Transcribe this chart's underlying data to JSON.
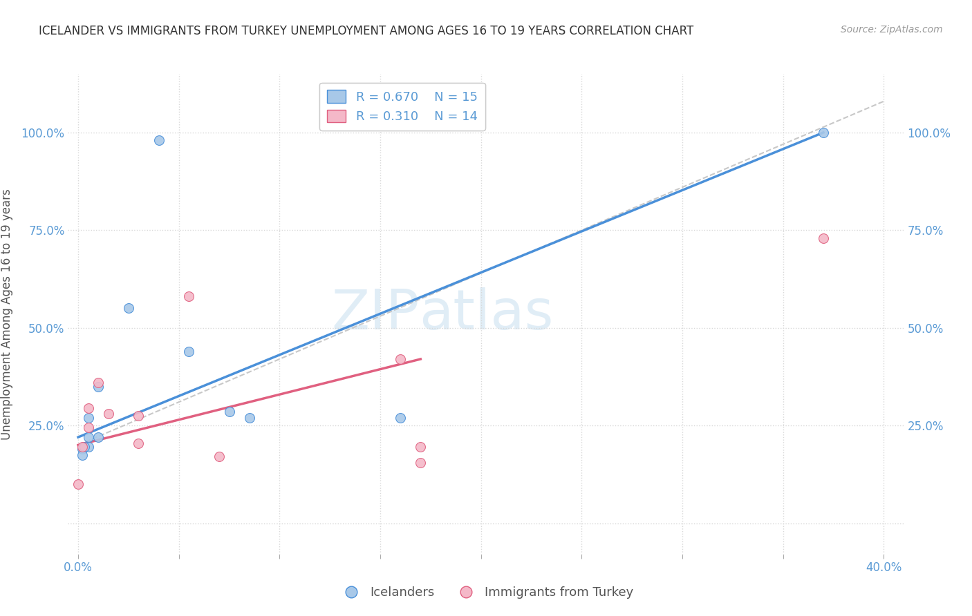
{
  "title": "ICELANDER VS IMMIGRANTS FROM TURKEY UNEMPLOYMENT AMONG AGES 16 TO 19 YEARS CORRELATION CHART",
  "source": "Source: ZipAtlas.com",
  "ylabel_label": "Unemployment Among Ages 16 to 19 years",
  "x_ticks": [
    0,
    5,
    10,
    15,
    20,
    25,
    30,
    35,
    40
  ],
  "x_tick_labels": [
    "0.0%",
    "",
    "",
    "",
    "",
    "",
    "",
    "",
    "40.0%"
  ],
  "y_ticks": [
    0,
    25,
    50,
    75,
    100
  ],
  "y_tick_labels": [
    "",
    "25.0%",
    "50.0%",
    "75.0%",
    "100.0%"
  ],
  "xlim": [
    -0.5,
    41
  ],
  "ylim": [
    -8,
    115
  ],
  "watermark_zip": "ZIP",
  "watermark_atlas": "atlas",
  "legend_line1": "R = 0.670    N = 15",
  "legend_line2": "R = 0.310    N = 14",
  "legend_label_blue": "Icelanders",
  "legend_label_pink": "Immigrants from Turkey",
  "blue_scatter_x": [
    4.0,
    0.2,
    2.5,
    1.0,
    1.0,
    0.5,
    0.5,
    0.5,
    0.3,
    0.2,
    5.5,
    7.5,
    8.5,
    37.0,
    16.0
  ],
  "blue_scatter_y": [
    98,
    19,
    55,
    35,
    22,
    27,
    22,
    19.5,
    19.5,
    17.5,
    44,
    28.5,
    27,
    100,
    27
  ],
  "pink_scatter_x": [
    0.2,
    0.0,
    0.5,
    0.5,
    1.0,
    1.5,
    3.0,
    3.0,
    5.5,
    7.0,
    16.0,
    17.0,
    17.0,
    37.0
  ],
  "pink_scatter_y": [
    19.5,
    10,
    29.5,
    24.5,
    36,
    28,
    27.5,
    20.5,
    58,
    17,
    42,
    19.5,
    15.5,
    73
  ],
  "blue_line_x0": 0,
  "blue_line_y0": 22,
  "blue_line_x1": 37,
  "blue_line_y1": 100,
  "pink_line_x0": 0,
  "pink_line_y0": 20,
  "pink_line_x1": 17,
  "pink_line_y1": 42,
  "diag_line_x0": 0,
  "diag_line_y0": 20,
  "diag_line_x1": 40,
  "diag_line_y1": 108,
  "blue_scatter_color": "#a8c8e8",
  "pink_scatter_color": "#f4b8c8",
  "blue_line_color": "#4a90d9",
  "pink_line_color": "#e06080",
  "diag_line_color": "#c8c8c8",
  "title_color": "#333333",
  "axis_tick_color": "#5b9bd5",
  "ylabel_color": "#555555",
  "circle_size": 100,
  "grid_color": "#d8d8d8"
}
